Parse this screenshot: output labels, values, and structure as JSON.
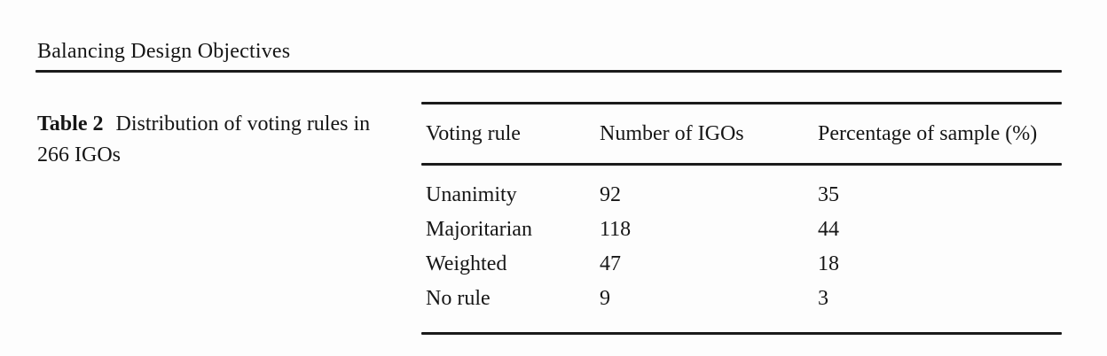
{
  "running_head": "Balancing Design Objectives",
  "caption": {
    "label": "Table 2",
    "text": "Distribution of voting rules in 266 IGOs"
  },
  "table": {
    "columns": [
      "Voting rule",
      "Number of IGOs",
      "Percentage of sample (%)"
    ],
    "rows": [
      [
        "Unanimity",
        "92",
        "35"
      ],
      [
        "Majoritarian",
        "118",
        "44"
      ],
      [
        "Weighted",
        "47",
        "18"
      ],
      [
        "No rule",
        "9",
        "3"
      ]
    ]
  },
  "colors": {
    "text": "#161616",
    "rule": "#1b1b1b",
    "background": "#fdfdfd"
  }
}
